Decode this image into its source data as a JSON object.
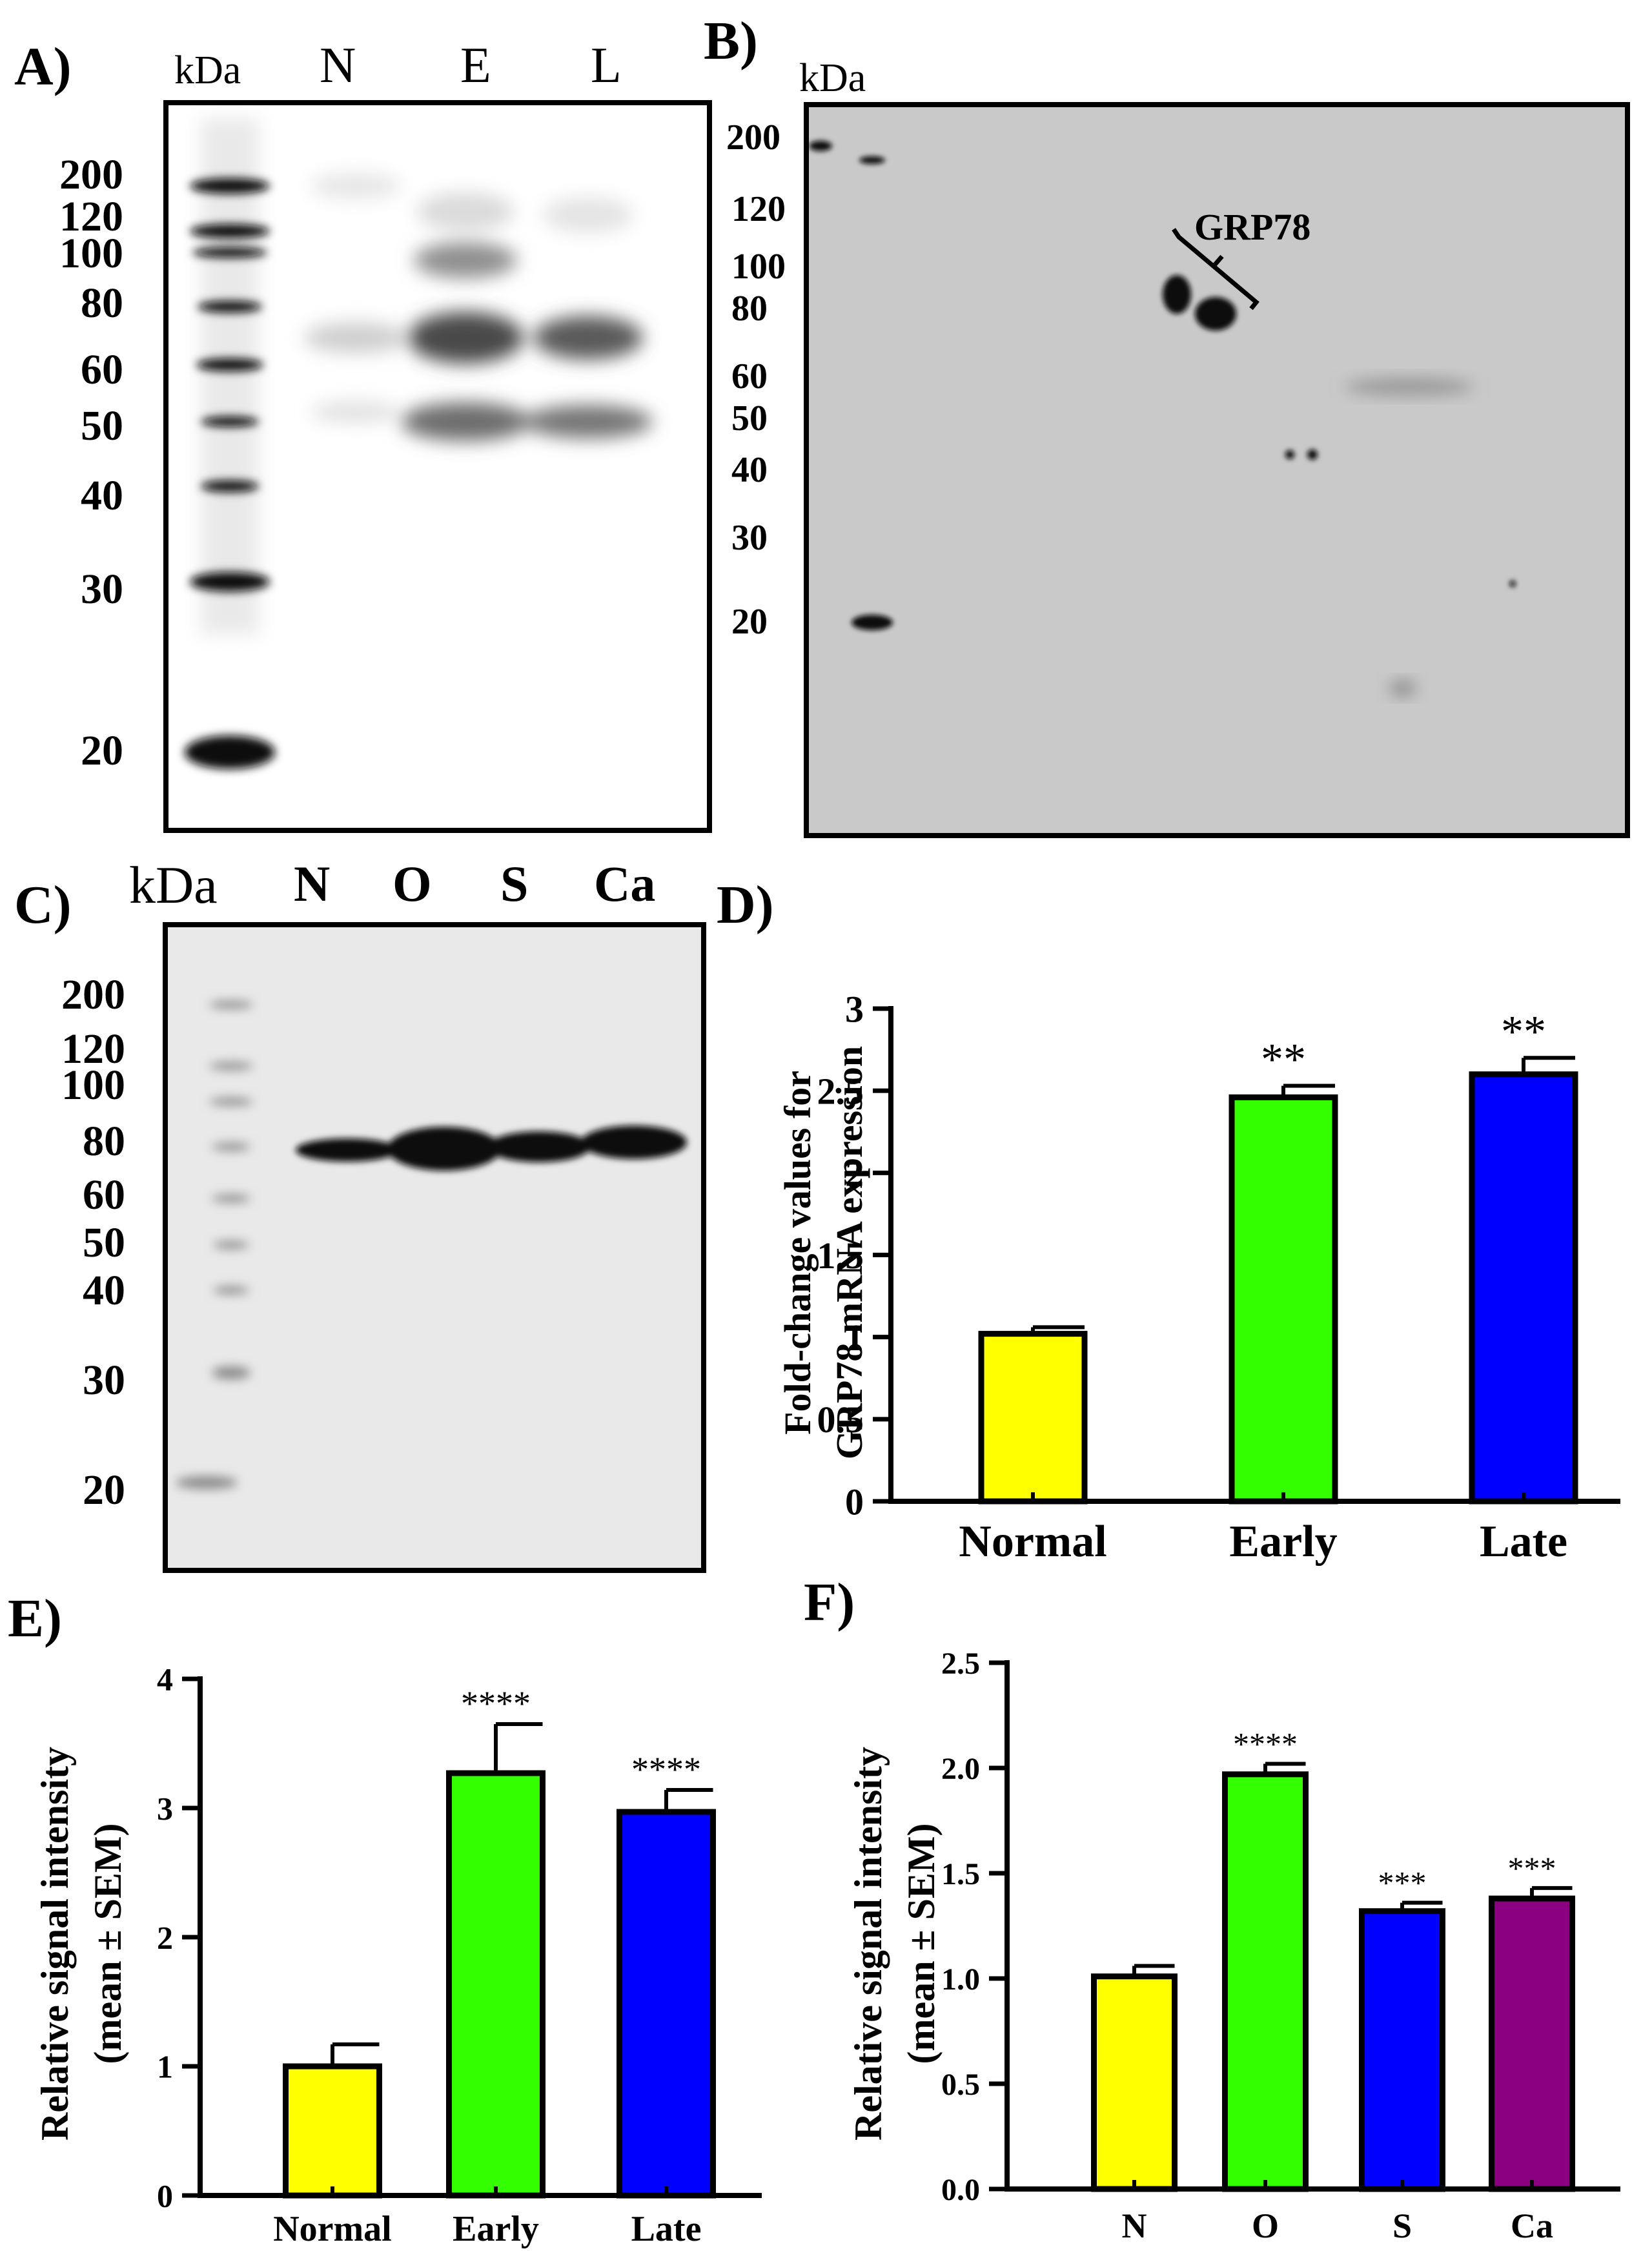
{
  "panels": {
    "a": {
      "letter": "A)",
      "kda": "kDa",
      "lanes": [
        "N",
        "E",
        "L"
      ],
      "markers": [
        "200",
        "120",
        "100",
        "80",
        "60",
        "50",
        "40",
        "30",
        "20"
      ]
    },
    "b": {
      "letter": "B)",
      "kda": "kDa",
      "markers": [
        "200",
        "120",
        "100",
        "80",
        "60",
        "50",
        "40",
        "30",
        "20"
      ],
      "annotation": "GRP78"
    },
    "c": {
      "letter": "C)",
      "kda": "kDa",
      "lanes": [
        "N",
        "O",
        "S",
        "Ca"
      ],
      "markers": [
        "200",
        "120",
        "100",
        "80",
        "60",
        "50",
        "40",
        "30",
        "20"
      ]
    },
    "d": {
      "letter": "D)"
    },
    "e": {
      "letter": "E)"
    },
    "f": {
      "letter": "F)"
    }
  },
  "colors": {
    "normal": "#ffff00",
    "early": "#33ff00",
    "late": "#0000ff",
    "ca": "#8b0080"
  },
  "chart_data": [
    {
      "id": "D",
      "type": "bar",
      "categories": [
        "Normal",
        "Early",
        "Late"
      ],
      "values": [
        1.02,
        2.46,
        2.6
      ],
      "errors": [
        0.04,
        0.07,
        0.1
      ],
      "significance": [
        "",
        "**",
        "**"
      ],
      "ylabel": "Fold-change values for GRP78 mRNA expression",
      "ylim": [
        0,
        3
      ],
      "yticks": [
        "0",
        "0.5",
        "1",
        "1.5",
        "2",
        "2.5",
        "3"
      ],
      "colors": [
        "#ffff00",
        "#33ff00",
        "#0000ff"
      ]
    },
    {
      "id": "E",
      "type": "bar",
      "categories": [
        "Normal",
        "Early",
        "Late"
      ],
      "values": [
        1.0,
        3.27,
        2.97
      ],
      "errors": [
        0.17,
        0.38,
        0.17
      ],
      "significance": [
        "",
        "****",
        "****"
      ],
      "ylabel": "Relative signal intensity (mean ± SEM)",
      "ylim": [
        0,
        4
      ],
      "yticks": [
        "0",
        "1",
        "2",
        "3",
        "4"
      ],
      "colors": [
        "#ffff00",
        "#33ff00",
        "#0000ff"
      ]
    },
    {
      "id": "F",
      "type": "bar",
      "categories": [
        "N",
        "O",
        "S",
        "Ca"
      ],
      "values": [
        1.01,
        1.97,
        1.32,
        1.38
      ],
      "errors": [
        0.05,
        0.05,
        0.04,
        0.05
      ],
      "significance": [
        "",
        "****",
        "***",
        "***"
      ],
      "ylabel": "Relative signal intensity (mean ± SEM)",
      "ylim": [
        0,
        2.5
      ],
      "yticks": [
        "0.0",
        "0.5",
        "1.0",
        "1.5",
        "2.0",
        "2.5"
      ],
      "colors": [
        "#ffff00",
        "#33ff00",
        "#0000ff",
        "#8b0080"
      ]
    }
  ]
}
